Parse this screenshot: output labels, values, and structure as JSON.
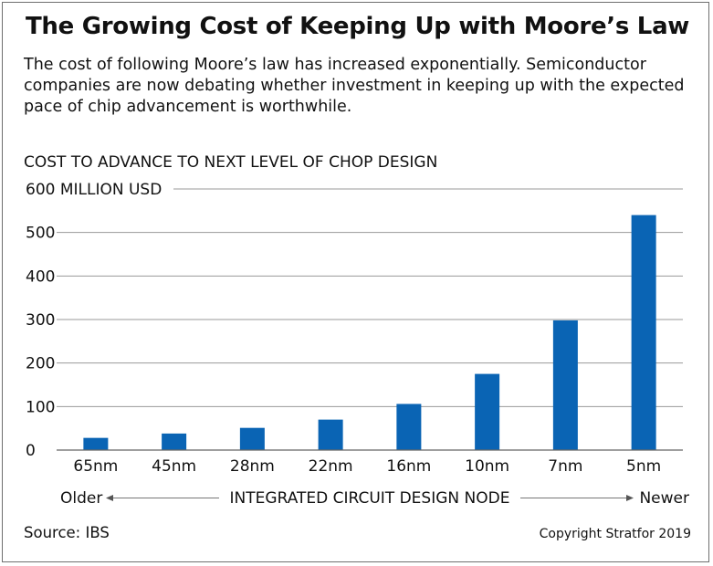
{
  "title": "The Growing Cost of Keeping Up with Moore’s Law",
  "subtitle": "The cost of following Moore’s law has increased exponentially. Semiconductor companies are now debating whether investment in keeping up with the expected pace of chip advancement is worthwhile.",
  "footer": {
    "source": "Source: IBS",
    "copyright": "Copyright Stratfor 2019"
  },
  "colors": {
    "bar": "#0a64b4",
    "grid": "#999999",
    "text": "#111111"
  },
  "chart_data": {
    "type": "bar",
    "title": "",
    "ylabel": "COST TO ADVANCE TO NEXT LEVEL OF CHOP DESIGN",
    "xlabel": "INTEGRATED CIRCUIT DESIGN NODE",
    "x_left_label": "Older",
    "x_right_label": "Newer",
    "categories": [
      "65nm",
      "45nm",
      "28nm",
      "22nm",
      "16nm",
      "10nm",
      "7nm",
      "5nm"
    ],
    "values": [
      28,
      38,
      51,
      70,
      106,
      175,
      298,
      540
    ],
    "ylim": [
      0,
      600
    ],
    "yticks": [
      0,
      100,
      200,
      300,
      400,
      500,
      600
    ],
    "ytick_labels": [
      "0",
      "100",
      "200",
      "300",
      "400",
      "500",
      "600 MILLION USD"
    ],
    "grid": true,
    "legend": "none"
  }
}
